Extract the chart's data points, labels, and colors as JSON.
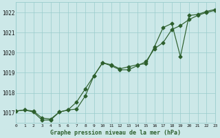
{
  "title": "Graphe pression niveau de la mer (hPa)",
  "bg_color": "#cce8e8",
  "line_color": "#2d5f2d",
  "grid_color": "#99cccc",
  "xlim": [
    0,
    23
  ],
  "ylim": [
    1016.5,
    1022.5
  ],
  "yticks": [
    1017,
    1018,
    1019,
    1020,
    1021,
    1022
  ],
  "xticks": [
    0,
    1,
    2,
    3,
    4,
    5,
    6,
    7,
    8,
    9,
    10,
    11,
    12,
    13,
    14,
    15,
    16,
    17,
    18,
    19,
    20,
    21,
    22,
    23
  ],
  "line1_x": [
    0,
    1,
    2,
    3,
    4,
    5,
    6,
    7,
    8,
    9,
    10,
    11,
    12,
    13,
    14,
    15,
    16,
    17,
    18,
    19,
    20,
    21,
    22,
    23
  ],
  "line1_y": [
    1017.1,
    1017.15,
    1017.1,
    1016.75,
    1016.7,
    1017.05,
    1017.15,
    1017.55,
    1018.2,
    1018.85,
    1019.5,
    1019.35,
    1019.15,
    1019.15,
    1019.35,
    1019.55,
    1020.2,
    1020.5,
    1021.15,
    1021.35,
    1021.65,
    1021.85,
    1022.0,
    1022.1
  ],
  "line2_x": [
    0,
    1,
    2,
    3,
    4,
    5,
    6,
    7,
    8,
    9,
    10,
    11,
    12,
    13,
    14,
    15,
    16,
    17,
    18,
    19,
    20,
    21,
    22,
    23
  ],
  "line2_y": [
    1017.1,
    1017.15,
    1017.05,
    1016.65,
    1016.65,
    1017.05,
    1017.15,
    1017.2,
    1017.85,
    1018.85,
    1019.5,
    1019.4,
    1019.2,
    1019.3,
    1019.4,
    1019.45,
    1020.3,
    1021.25,
    1021.45,
    1019.8,
    1021.85,
    1021.9,
    1022.05,
    1022.15
  ]
}
